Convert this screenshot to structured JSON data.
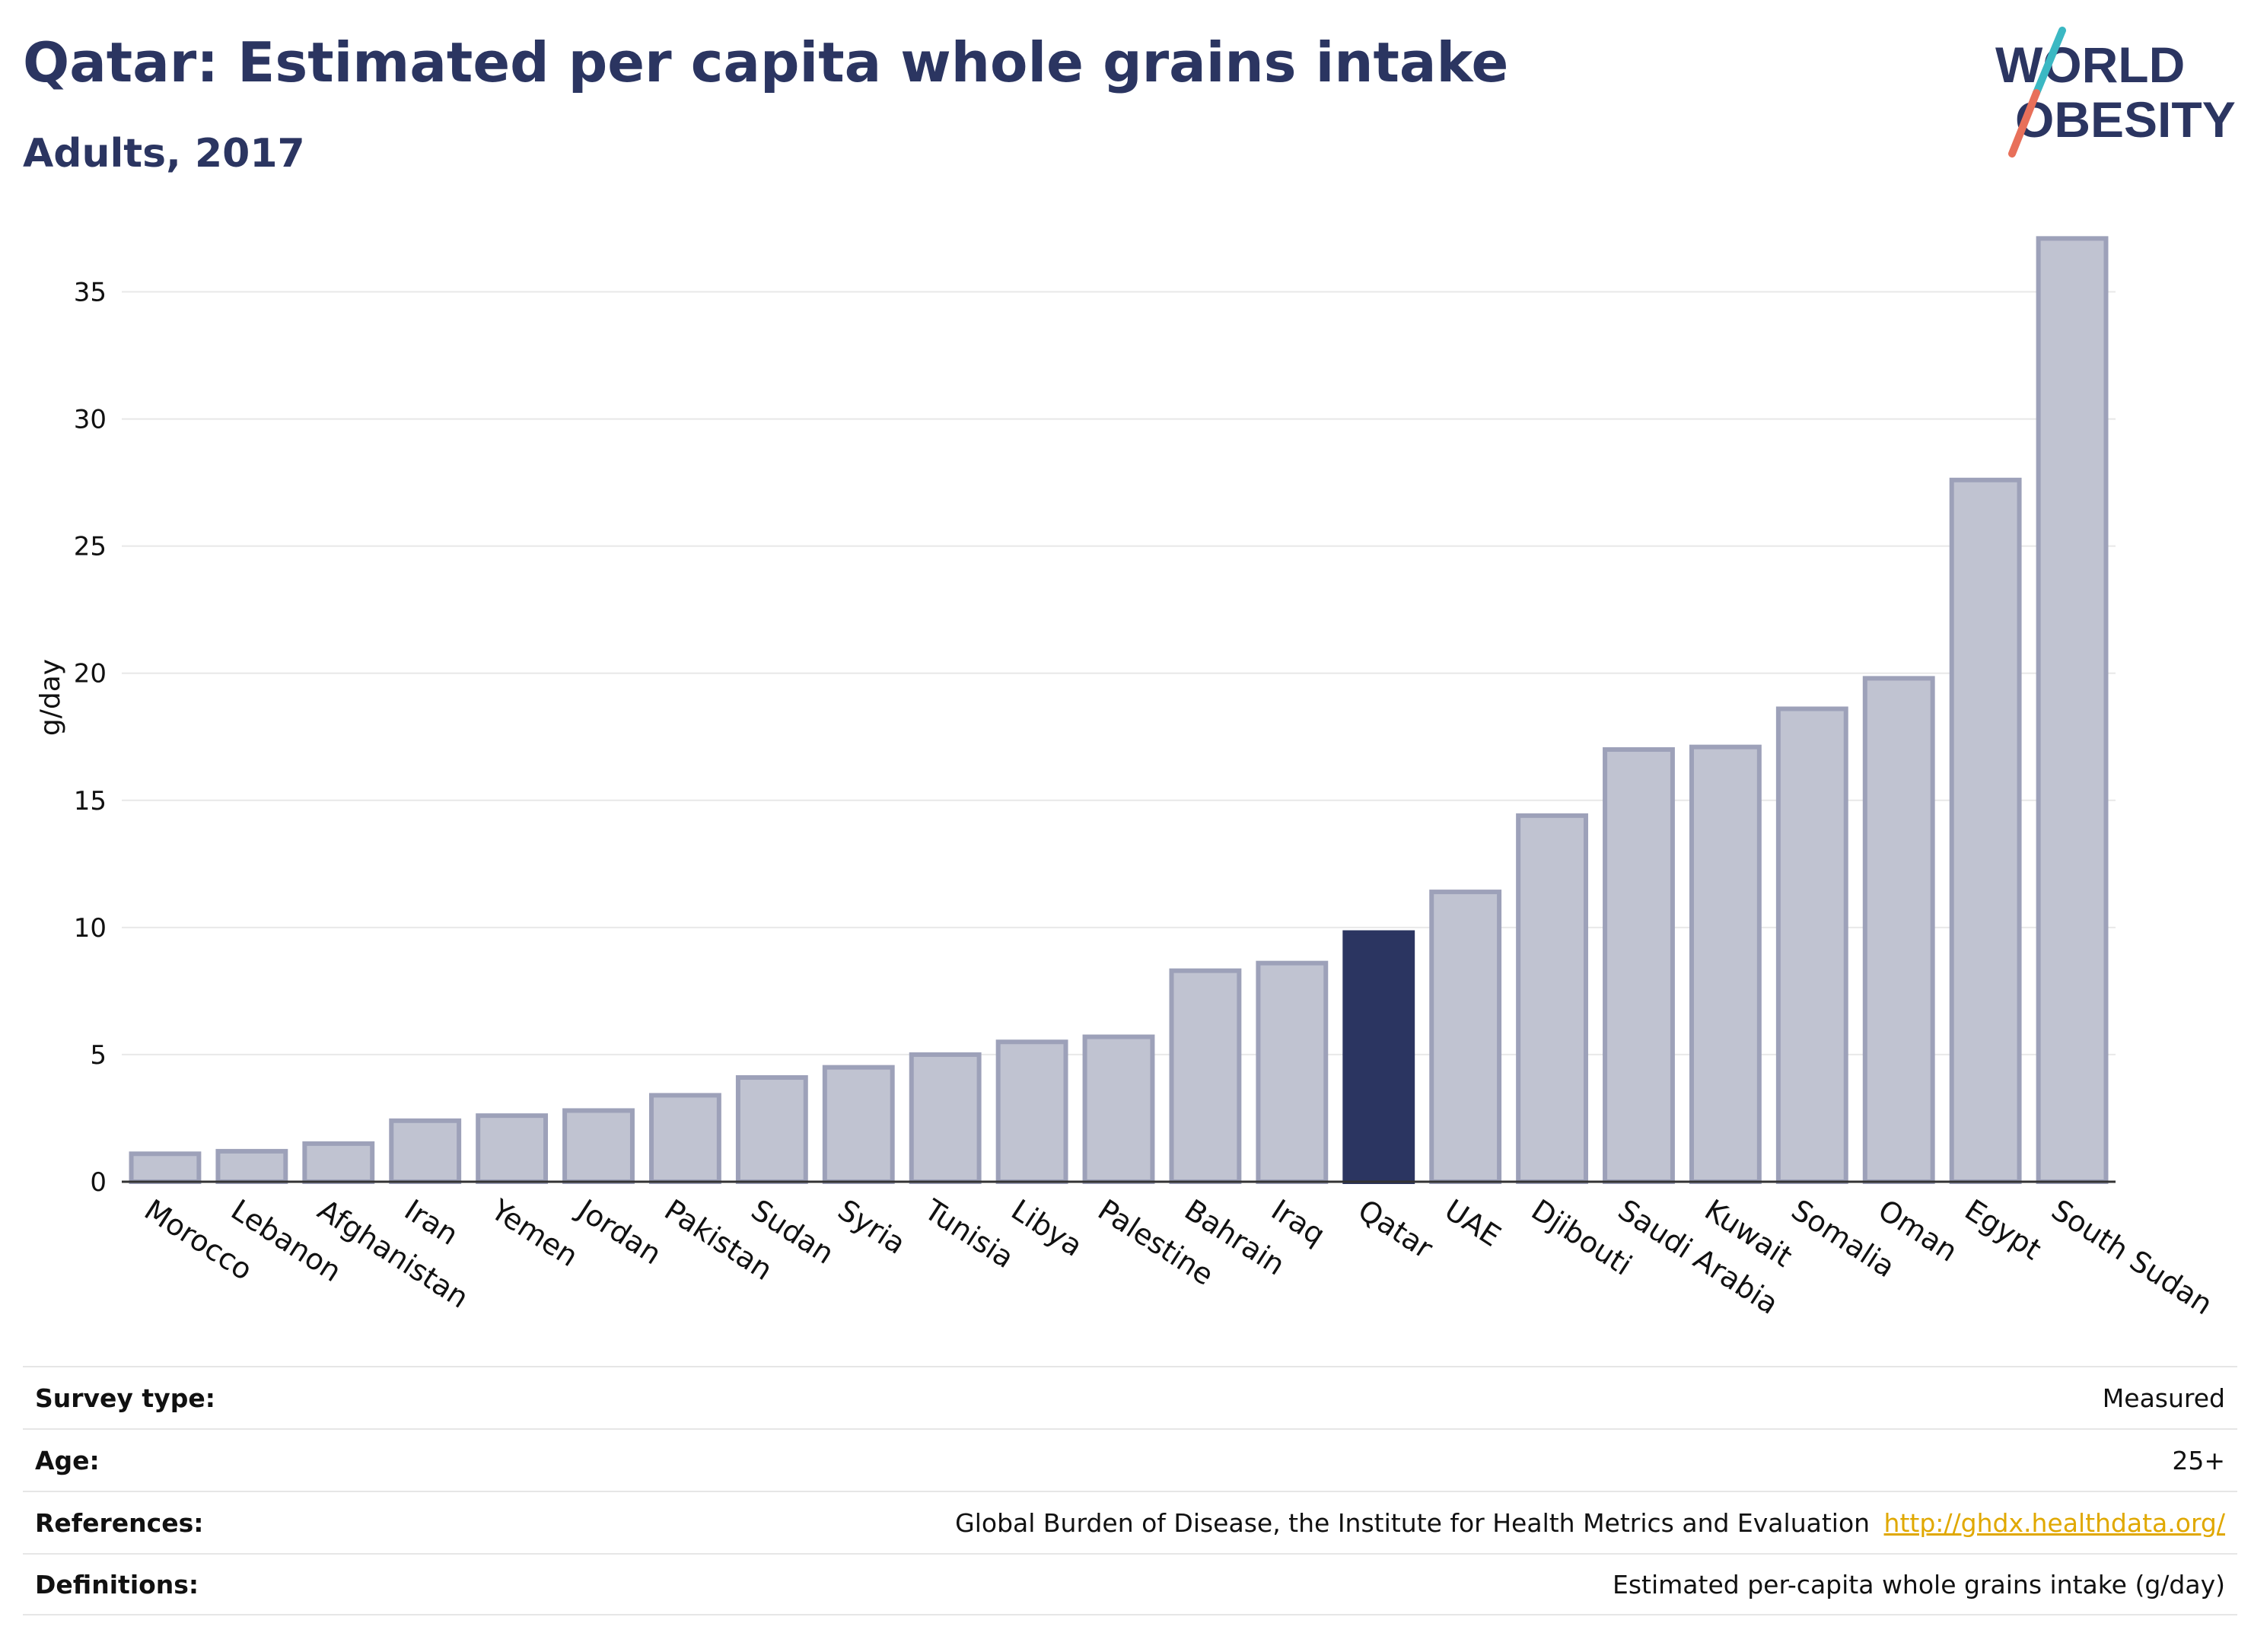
{
  "header": {
    "title": "Qatar: Estimated per capita whole grains intake",
    "subtitle": "Adults, 2017"
  },
  "logo": {
    "line1": "WORLD",
    "line2": "OBESITY",
    "colors": {
      "text": "#2b3561",
      "slash_teal": "#3bb8c3",
      "slash_coral": "#e8705a"
    }
  },
  "chart_data": {
    "type": "bar",
    "ylabel": "g/day",
    "ylim": [
      0,
      37.5
    ],
    "yticks": [
      0,
      5,
      10,
      15,
      20,
      25,
      30,
      35
    ],
    "grid": true,
    "highlight": "Qatar",
    "colors": {
      "bar": "#c0c3d1",
      "bar_border": "#9da1b9",
      "highlight": "#2b3561",
      "grid": "#e8e8e8"
    },
    "categories": [
      "Morocco",
      "Lebanon",
      "Afghanistan",
      "Iran",
      "Yemen",
      "Jordan",
      "Pakistan",
      "Sudan",
      "Syria",
      "Tunisia",
      "Libya",
      "Palestine",
      "Bahrain",
      "Iraq",
      "Qatar",
      "UAE",
      "Djibouti",
      "Saudi Arabia",
      "Kuwait",
      "Somalia",
      "Oman",
      "Egypt",
      "South Sudan"
    ],
    "values": [
      1.1,
      1.2,
      1.5,
      2.4,
      2.6,
      2.8,
      3.4,
      4.1,
      4.5,
      5.0,
      5.5,
      5.7,
      8.3,
      8.6,
      9.8,
      11.4,
      14.4,
      17.0,
      17.1,
      18.6,
      19.8,
      27.6,
      37.1
    ]
  },
  "info": {
    "rows": [
      {
        "label": "Survey type:",
        "value": "Measured"
      },
      {
        "label": "Age:",
        "value": "25+"
      },
      {
        "label": "References:",
        "value": "Global Burden of Disease, the Institute for Health Metrics and Evaluation",
        "link": "http://ghdx.healthdata.org/"
      },
      {
        "label": "Definitions:",
        "value": "Estimated per-capita whole grains intake (g/day)"
      }
    ]
  }
}
